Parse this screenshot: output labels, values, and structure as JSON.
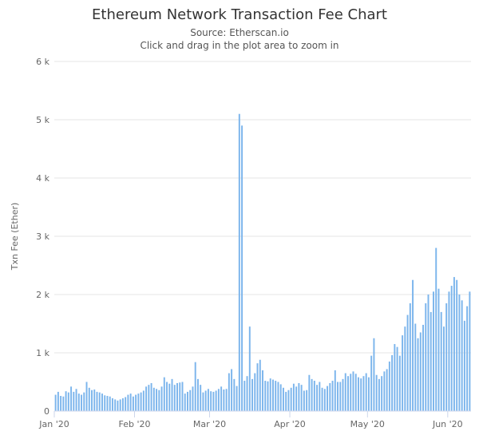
{
  "chart_data": {
    "type": "bar",
    "title": "Ethereum Network Transaction Fee Chart",
    "subtitle": "Source: Etherscan.io",
    "hint": "Click and drag in the plot area to zoom in",
    "ylabel": "Txn Fee (Ether)",
    "xlabel": "",
    "ylim": [
      0,
      6000
    ],
    "yticks": [
      0,
      1000,
      2000,
      3000,
      4000,
      5000,
      6000
    ],
    "ytick_labels": [
      "0",
      "1 k",
      "2 k",
      "3 k",
      "4 k",
      "5 k",
      "6 k"
    ],
    "x_start": "2020-01-01",
    "xticks": [
      {
        "day": 0,
        "label": "Jan '20"
      },
      {
        "day": 31,
        "label": "Feb '20"
      },
      {
        "day": 60,
        "label": "Mar '20"
      },
      {
        "day": 91,
        "label": "Apr '20"
      },
      {
        "day": 121,
        "label": "May '20"
      },
      {
        "day": 152,
        "label": "Jun '20"
      }
    ],
    "grid": true,
    "legend": "none",
    "bar_color": "#7cb5ec",
    "series": [
      {
        "values": [
          280,
          330,
          260,
          250,
          340,
          320,
          420,
          330,
          380,
          300,
          280,
          320,
          500,
          400,
          360,
          370,
          330,
          320,
          300,
          270,
          260,
          250,
          220,
          200,
          180,
          200,
          220,
          240,
          280,
          300,
          250,
          280,
          300,
          320,
          350,
          420,
          450,
          480,
          400,
          380,
          360,
          420,
          580,
          500,
          470,
          550,
          450,
          480,
          490,
          500,
          300,
          330,
          360,
          420,
          840,
          550,
          450,
          320,
          350,
          380,
          340,
          330,
          350,
          380,
          420,
          370,
          380,
          650,
          720,
          550,
          430,
          5100,
          4900,
          520,
          600,
          1450,
          550,
          650,
          820,
          880,
          700,
          520,
          510,
          560,
          540,
          520,
          500,
          460,
          400,
          330,
          360,
          400,
          470,
          420,
          480,
          450,
          350,
          360,
          620,
          550,
          520,
          450,
          500,
          400,
          380,
          430,
          480,
          520,
          700,
          500,
          500,
          550,
          650,
          600,
          640,
          680,
          640,
          580,
          560,
          600,
          650,
          580,
          950,
          1250,
          620,
          550,
          600,
          680,
          720,
          850,
          960,
          1150,
          1100,
          950,
          1300,
          1450,
          1650,
          1850,
          2250,
          1500,
          1250,
          1350,
          1480,
          1850,
          2000,
          1700,
          2050,
          2800,
          2100,
          1700,
          1450,
          1850,
          2050,
          2150,
          2300,
          2250,
          2000,
          1900,
          1550,
          1800,
          2050
        ]
      }
    ]
  }
}
